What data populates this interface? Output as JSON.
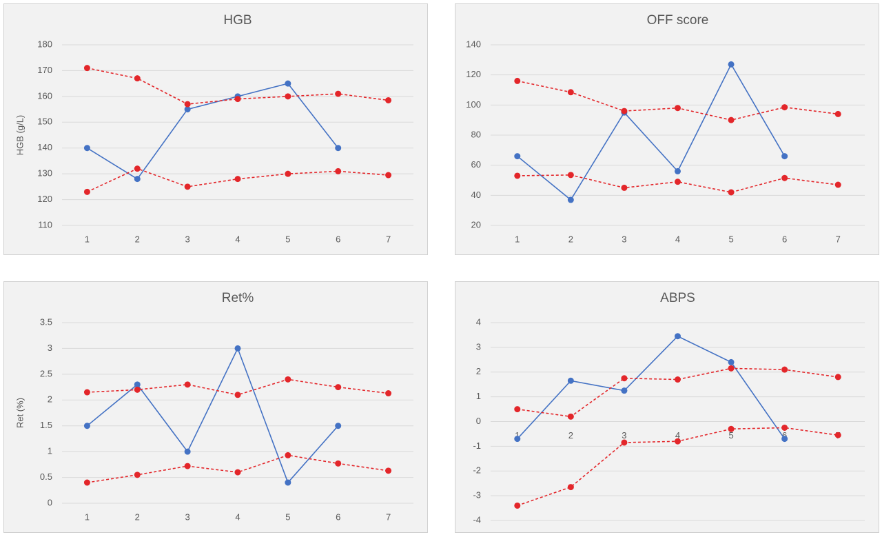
{
  "chart_data": [
    {
      "type": "line",
      "title": "HGB",
      "ylabel": "HGB (g/L)",
      "categories": [
        1,
        2,
        3,
        4,
        5,
        6,
        7
      ],
      "ylim": [
        110,
        180
      ],
      "yticks": [
        110,
        120,
        130,
        140,
        150,
        160,
        170,
        180
      ],
      "grid": true,
      "series": [
        {
          "color": "#4472c4",
          "dash": false,
          "values": [
            140,
            128,
            155,
            160,
            165,
            140,
            null
          ]
        },
        {
          "color": "#e3262a",
          "dash": true,
          "values": [
            171,
            167,
            157,
            159,
            160,
            161,
            158.5
          ]
        },
        {
          "color": "#e3262a",
          "dash": true,
          "values": [
            123,
            132,
            125,
            128,
            130,
            131,
            129.5
          ]
        }
      ]
    },
    {
      "type": "line",
      "title": "OFF score",
      "categories": [
        1,
        2,
        3,
        4,
        5,
        6,
        7
      ],
      "ylim": [
        20,
        140
      ],
      "yticks": [
        20,
        40,
        60,
        80,
        100,
        120,
        140
      ],
      "grid": true,
      "series": [
        {
          "color": "#4472c4",
          "dash": false,
          "values": [
            66,
            37,
            95,
            56,
            127,
            66,
            null
          ]
        },
        {
          "color": "#e3262a",
          "dash": true,
          "values": [
            116,
            108.5,
            96,
            98,
            90,
            98.5,
            94
          ]
        },
        {
          "color": "#e3262a",
          "dash": true,
          "values": [
            53,
            53.5,
            45,
            49,
            42,
            51.5,
            47
          ]
        }
      ]
    },
    {
      "type": "line",
      "title": "Ret%",
      "ylabel": "Ret (%)",
      "categories": [
        1,
        2,
        3,
        4,
        5,
        6,
        7
      ],
      "ylim": [
        0,
        3.5
      ],
      "yticks": [
        0,
        0.5,
        1,
        1.5,
        2,
        2.5,
        3,
        3.5
      ],
      "grid": true,
      "series": [
        {
          "color": "#4472c4",
          "dash": false,
          "values": [
            1.5,
            2.3,
            1,
            3,
            0.4,
            1.5,
            null
          ]
        },
        {
          "color": "#e3262a",
          "dash": true,
          "values": [
            2.15,
            2.2,
            2.3,
            2.1,
            2.4,
            2.25,
            2.13
          ]
        },
        {
          "color": "#e3262a",
          "dash": true,
          "values": [
            0.4,
            0.55,
            0.72,
            0.6,
            0.93,
            0.77,
            0.63
          ]
        }
      ]
    },
    {
      "type": "line",
      "title": "ABPS",
      "categories": [
        1,
        2,
        3,
        4,
        5,
        6,
        7
      ],
      "ylim": [
        -4,
        4
      ],
      "yticks": [
        -4,
        -3,
        -2,
        -1,
        0,
        1,
        2,
        3,
        4
      ],
      "grid": true,
      "series": [
        {
          "color": "#4472c4",
          "dash": false,
          "values": [
            -0.7,
            1.65,
            1.25,
            3.45,
            2.4,
            -0.7,
            null
          ]
        },
        {
          "color": "#e3262a",
          "dash": true,
          "values": [
            0.5,
            0.2,
            1.75,
            1.7,
            2.15,
            2.1,
            1.8
          ]
        },
        {
          "color": "#e3262a",
          "dash": true,
          "values": [
            -3.4,
            -2.65,
            -0.85,
            -0.8,
            -0.3,
            -0.25,
            -0.55
          ]
        }
      ]
    }
  ]
}
